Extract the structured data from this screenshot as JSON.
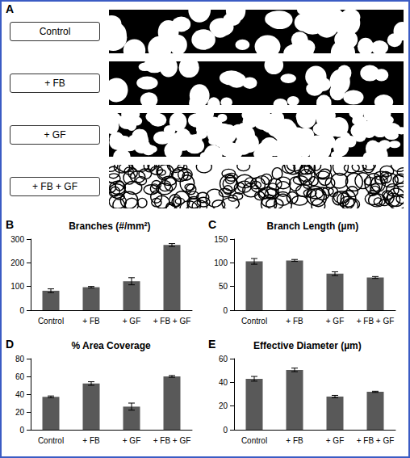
{
  "image_panel": {
    "letter": "A",
    "labels": [
      "Control",
      "+ FB",
      "+ GF",
      "+ FB + GF"
    ]
  },
  "panel_letters": [
    "B",
    "C",
    "D",
    "E"
  ],
  "chart_data": [
    {
      "type": "bar",
      "title": "Branches (#/mm²)",
      "categories": [
        "Control",
        "+ FB",
        "+ GF",
        "+ FB + GF"
      ],
      "values": [
        82,
        97,
        122,
        275
      ],
      "errors": [
        8,
        3,
        15,
        6
      ],
      "color": "#595959",
      "ylim": [
        0,
        300
      ],
      "yticks": [
        0,
        100,
        200,
        300
      ],
      "grid": false
    },
    {
      "type": "bar",
      "title": "Branch Length (µm)",
      "categories": [
        "Control",
        "+ FB",
        "+ GF",
        "+ FB + GF"
      ],
      "values": [
        103,
        105,
        77,
        69
      ],
      "errors": [
        6,
        2,
        4,
        2
      ],
      "color": "#595959",
      "ylim": [
        0,
        150
      ],
      "yticks": [
        0,
        50,
        100,
        150
      ],
      "grid": false
    },
    {
      "type": "bar",
      "title": "% Area Coverage",
      "categories": [
        "Control",
        "+ FB",
        "+ GF",
        "+ FB + GF"
      ],
      "values": [
        37,
        52,
        26,
        60
      ],
      "errors": [
        1,
        2,
        4,
        1
      ],
      "color": "#595959",
      "ylim": [
        0,
        80
      ],
      "yticks": [
        0,
        20,
        40,
        60,
        80
      ],
      "grid": false
    },
    {
      "type": "bar",
      "title": "Effective Diameter (µm)",
      "categories": [
        "Control",
        "+ FB",
        "+ GF",
        "+ FB + GF"
      ],
      "values": [
        43,
        50.5,
        28,
        32
      ],
      "errors": [
        2,
        1.5,
        1,
        0.5
      ],
      "color": "#595959",
      "ylim": [
        0,
        60
      ],
      "yticks": [
        0,
        20,
        40,
        60
      ],
      "grid": false
    }
  ]
}
